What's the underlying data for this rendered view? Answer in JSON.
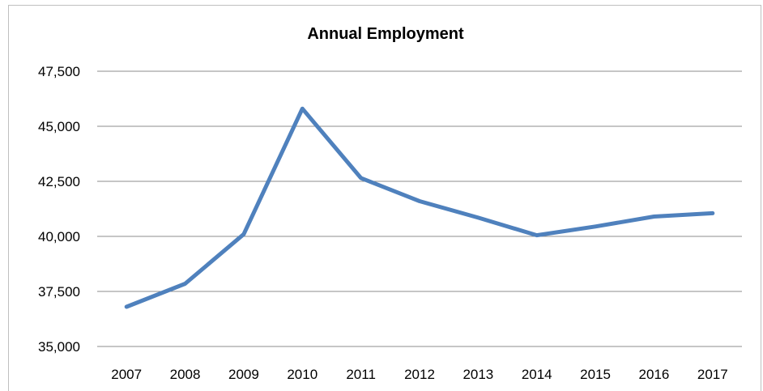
{
  "chart_data": {
    "type": "line",
    "title": "Annual Employment",
    "xlabel": "",
    "ylabel": "",
    "categories": [
      "2007",
      "2008",
      "2009",
      "2010",
      "2011",
      "2012",
      "2013",
      "2014",
      "2015",
      "2016",
      "2017"
    ],
    "series": [
      {
        "values": [
          36800,
          37850,
          40100,
          45800,
          42650,
          41600,
          40850,
          40050,
          40450,
          40900,
          41050
        ]
      }
    ],
    "ylim": [
      35000,
      47500
    ],
    "yticks": [
      35000,
      37500,
      40000,
      42500,
      45000,
      47500
    ],
    "ytick_labels": [
      "35,000",
      "37,500",
      "40,000",
      "42,500",
      "45,000",
      "47,500"
    ],
    "grid": true,
    "legend": "none",
    "colors": {
      "series": "#4f81bd",
      "grid": "#8c8c8c",
      "border": "#bfbfbf"
    }
  }
}
